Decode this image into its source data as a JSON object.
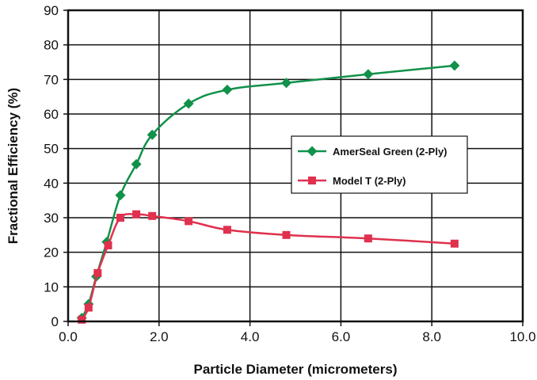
{
  "chart_data": {
    "type": "line",
    "xlabel": "Particle Diameter (micrometers)",
    "ylabel": "Fractional Efficiency (%)",
    "xlim": [
      0,
      10
    ],
    "ylim": [
      0,
      90
    ],
    "x_ticks": [
      "0.0",
      "2.0",
      "4.0",
      "6.0",
      "8.0",
      "10.0"
    ],
    "y_ticks": [
      "0",
      "10",
      "20",
      "30",
      "40",
      "50",
      "60",
      "70",
      "80",
      "90"
    ],
    "grid": true,
    "legend_position": "right-middle",
    "series": [
      {
        "name": "AmerSeal Green (2-Ply)",
        "color": "#11914a",
        "marker": "diamond",
        "points": [
          {
            "x": 0.3,
            "y": 1
          },
          {
            "x": 0.45,
            "y": 5
          },
          {
            "x": 0.62,
            "y": 13
          },
          {
            "x": 0.85,
            "y": 23
          },
          {
            "x": 1.15,
            "y": 36.5
          },
          {
            "x": 1.5,
            "y": 45.5
          },
          {
            "x": 1.85,
            "y": 54
          },
          {
            "x": 2.65,
            "y": 63
          },
          {
            "x": 3.5,
            "y": 67
          },
          {
            "x": 4.8,
            "y": 69
          },
          {
            "x": 6.6,
            "y": 71.5
          },
          {
            "x": 8.5,
            "y": 74
          }
        ]
      },
      {
        "name": "Model T (2-Ply)",
        "color": "#e0314e",
        "marker": "square",
        "points": [
          {
            "x": 0.3,
            "y": 0.5
          },
          {
            "x": 0.45,
            "y": 4
          },
          {
            "x": 0.65,
            "y": 14
          },
          {
            "x": 0.88,
            "y": 22
          },
          {
            "x": 1.15,
            "y": 30
          },
          {
            "x": 1.5,
            "y": 31
          },
          {
            "x": 1.85,
            "y": 30.5
          },
          {
            "x": 2.65,
            "y": 29
          },
          {
            "x": 3.5,
            "y": 26.5
          },
          {
            "x": 4.8,
            "y": 25
          },
          {
            "x": 6.6,
            "y": 24
          },
          {
            "x": 8.5,
            "y": 22.5
          }
        ]
      }
    ]
  }
}
